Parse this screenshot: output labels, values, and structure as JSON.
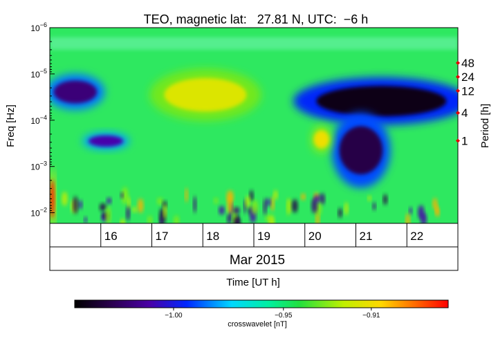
{
  "chart_data": {
    "type": "heatmap",
    "title": "TEO, magnetic lat:   27.81 N, UTC:  −6 h",
    "xlabel": "Time [UT h]",
    "ylabel": "Freq [Hz]",
    "ylabel_right": "Period [h]",
    "y_scale": "log",
    "y_range_hz": [
      1e-06,
      0.017
    ],
    "y_ticks": [
      {
        "value": 1e-06,
        "mantissa": "10",
        "exp": "−6"
      },
      {
        "value": 1e-05,
        "mantissa": "10",
        "exp": "−5"
      },
      {
        "value": 0.0001,
        "mantissa": "10",
        "exp": "−4"
      },
      {
        "value": 0.001,
        "mantissa": "10",
        "exp": "−3"
      },
      {
        "value": 0.01,
        "mantissa": "10",
        "exp": "−2"
      }
    ],
    "period_ticks": [
      {
        "label": "48",
        "hours": 48
      },
      {
        "label": "24",
        "hours": 24
      },
      {
        "label": "12",
        "hours": 12
      },
      {
        "label": "4",
        "hours": 4
      },
      {
        "label": "1",
        "hours": 1
      }
    ],
    "x_range_days": [
      15,
      23
    ],
    "day_labels": [
      {
        "label": "16",
        "day": 16
      },
      {
        "label": "17",
        "day": 17
      },
      {
        "label": "18",
        "day": 18
      },
      {
        "label": "19",
        "day": 19
      },
      {
        "label": "20",
        "day": 20
      },
      {
        "label": "21",
        "day": 21
      },
      {
        "label": "22",
        "day": 22
      }
    ],
    "month_label": "Mar 2015",
    "colorbar": {
      "label": "crosswavelet [nT]",
      "range": [
        -1.045,
        -0.875
      ],
      "ticks": [
        {
          "value": -1.0,
          "label": "−1.00"
        },
        {
          "value": -0.95,
          "label": "−0.95"
        },
        {
          "value": -0.91,
          "label": "−0.91"
        }
      ]
    },
    "background_value": -0.95,
    "features": [
      {
        "name": "dark band",
        "day_start": 20.0,
        "day_end": 23.0,
        "freq_low_hz": 1.5e-05,
        "freq_high_hz": 0.0001,
        "value": -1.04
      },
      {
        "name": "dark lobe",
        "day_start": 20.6,
        "day_end": 21.6,
        "freq_low_hz": 0.0001,
        "freq_high_hz": 0.002,
        "value": -1.03
      },
      {
        "name": "left arc",
        "day_start": 15.0,
        "day_end": 16.0,
        "freq_low_hz": 1.2e-05,
        "freq_high_hz": 5e-05,
        "value": -1.02
      },
      {
        "name": "yellow patch",
        "day_start": 17.1,
        "day_end": 19.0,
        "freq_low_hz": 1e-05,
        "freq_high_hz": 8e-05,
        "value": -0.915
      },
      {
        "name": "blue blob",
        "day_start": 15.7,
        "day_end": 16.5,
        "freq_low_hz": 0.0002,
        "freq_high_hz": 0.0004,
        "value": -1.01
      },
      {
        "name": "orange spot",
        "day_start": 20.15,
        "day_end": 20.5,
        "freq_low_hz": 0.00015,
        "freq_high_hz": 0.00045,
        "value": -0.91
      },
      {
        "name": "left edge",
        "day_start": 15.0,
        "day_end": 15.1,
        "freq_low_hz": 0.0015,
        "freq_high_hz": 0.017,
        "value": -0.88
      }
    ]
  }
}
